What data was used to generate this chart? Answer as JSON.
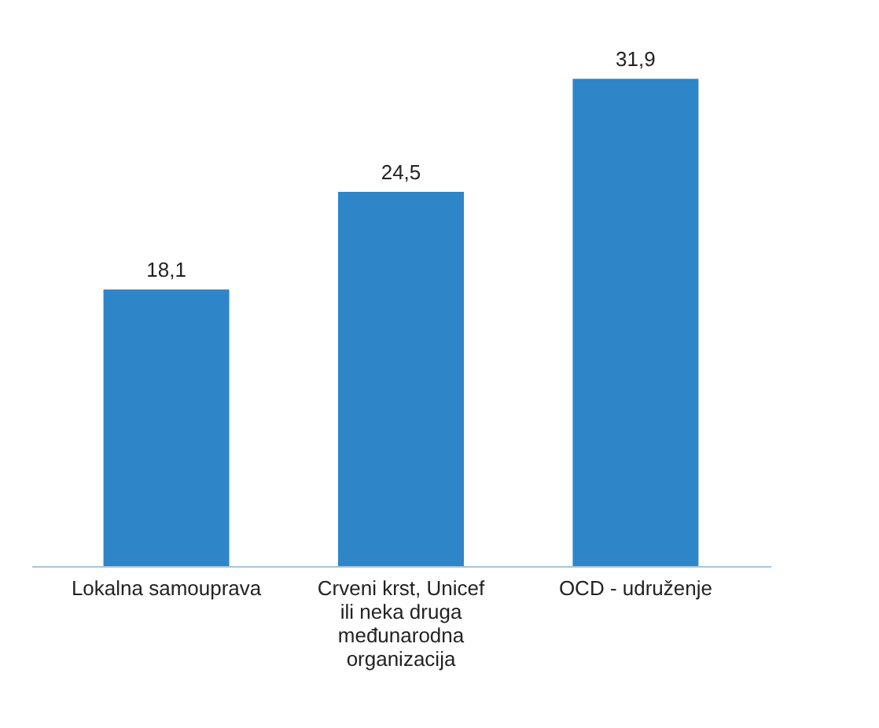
{
  "chart_data": {
    "type": "bar",
    "categories": [
      "Lokalna samouprava",
      "Crveni krst, Unicef ili neka druga međunarodna organizacija",
      "OCD - udruženje"
    ],
    "values": [
      18.1,
      24.5,
      31.9
    ],
    "color": "#2e86c8",
    "data_labels": true,
    "value_labels": [
      "18,1",
      "24,5",
      "31,9"
    ],
    "grid": false
  }
}
